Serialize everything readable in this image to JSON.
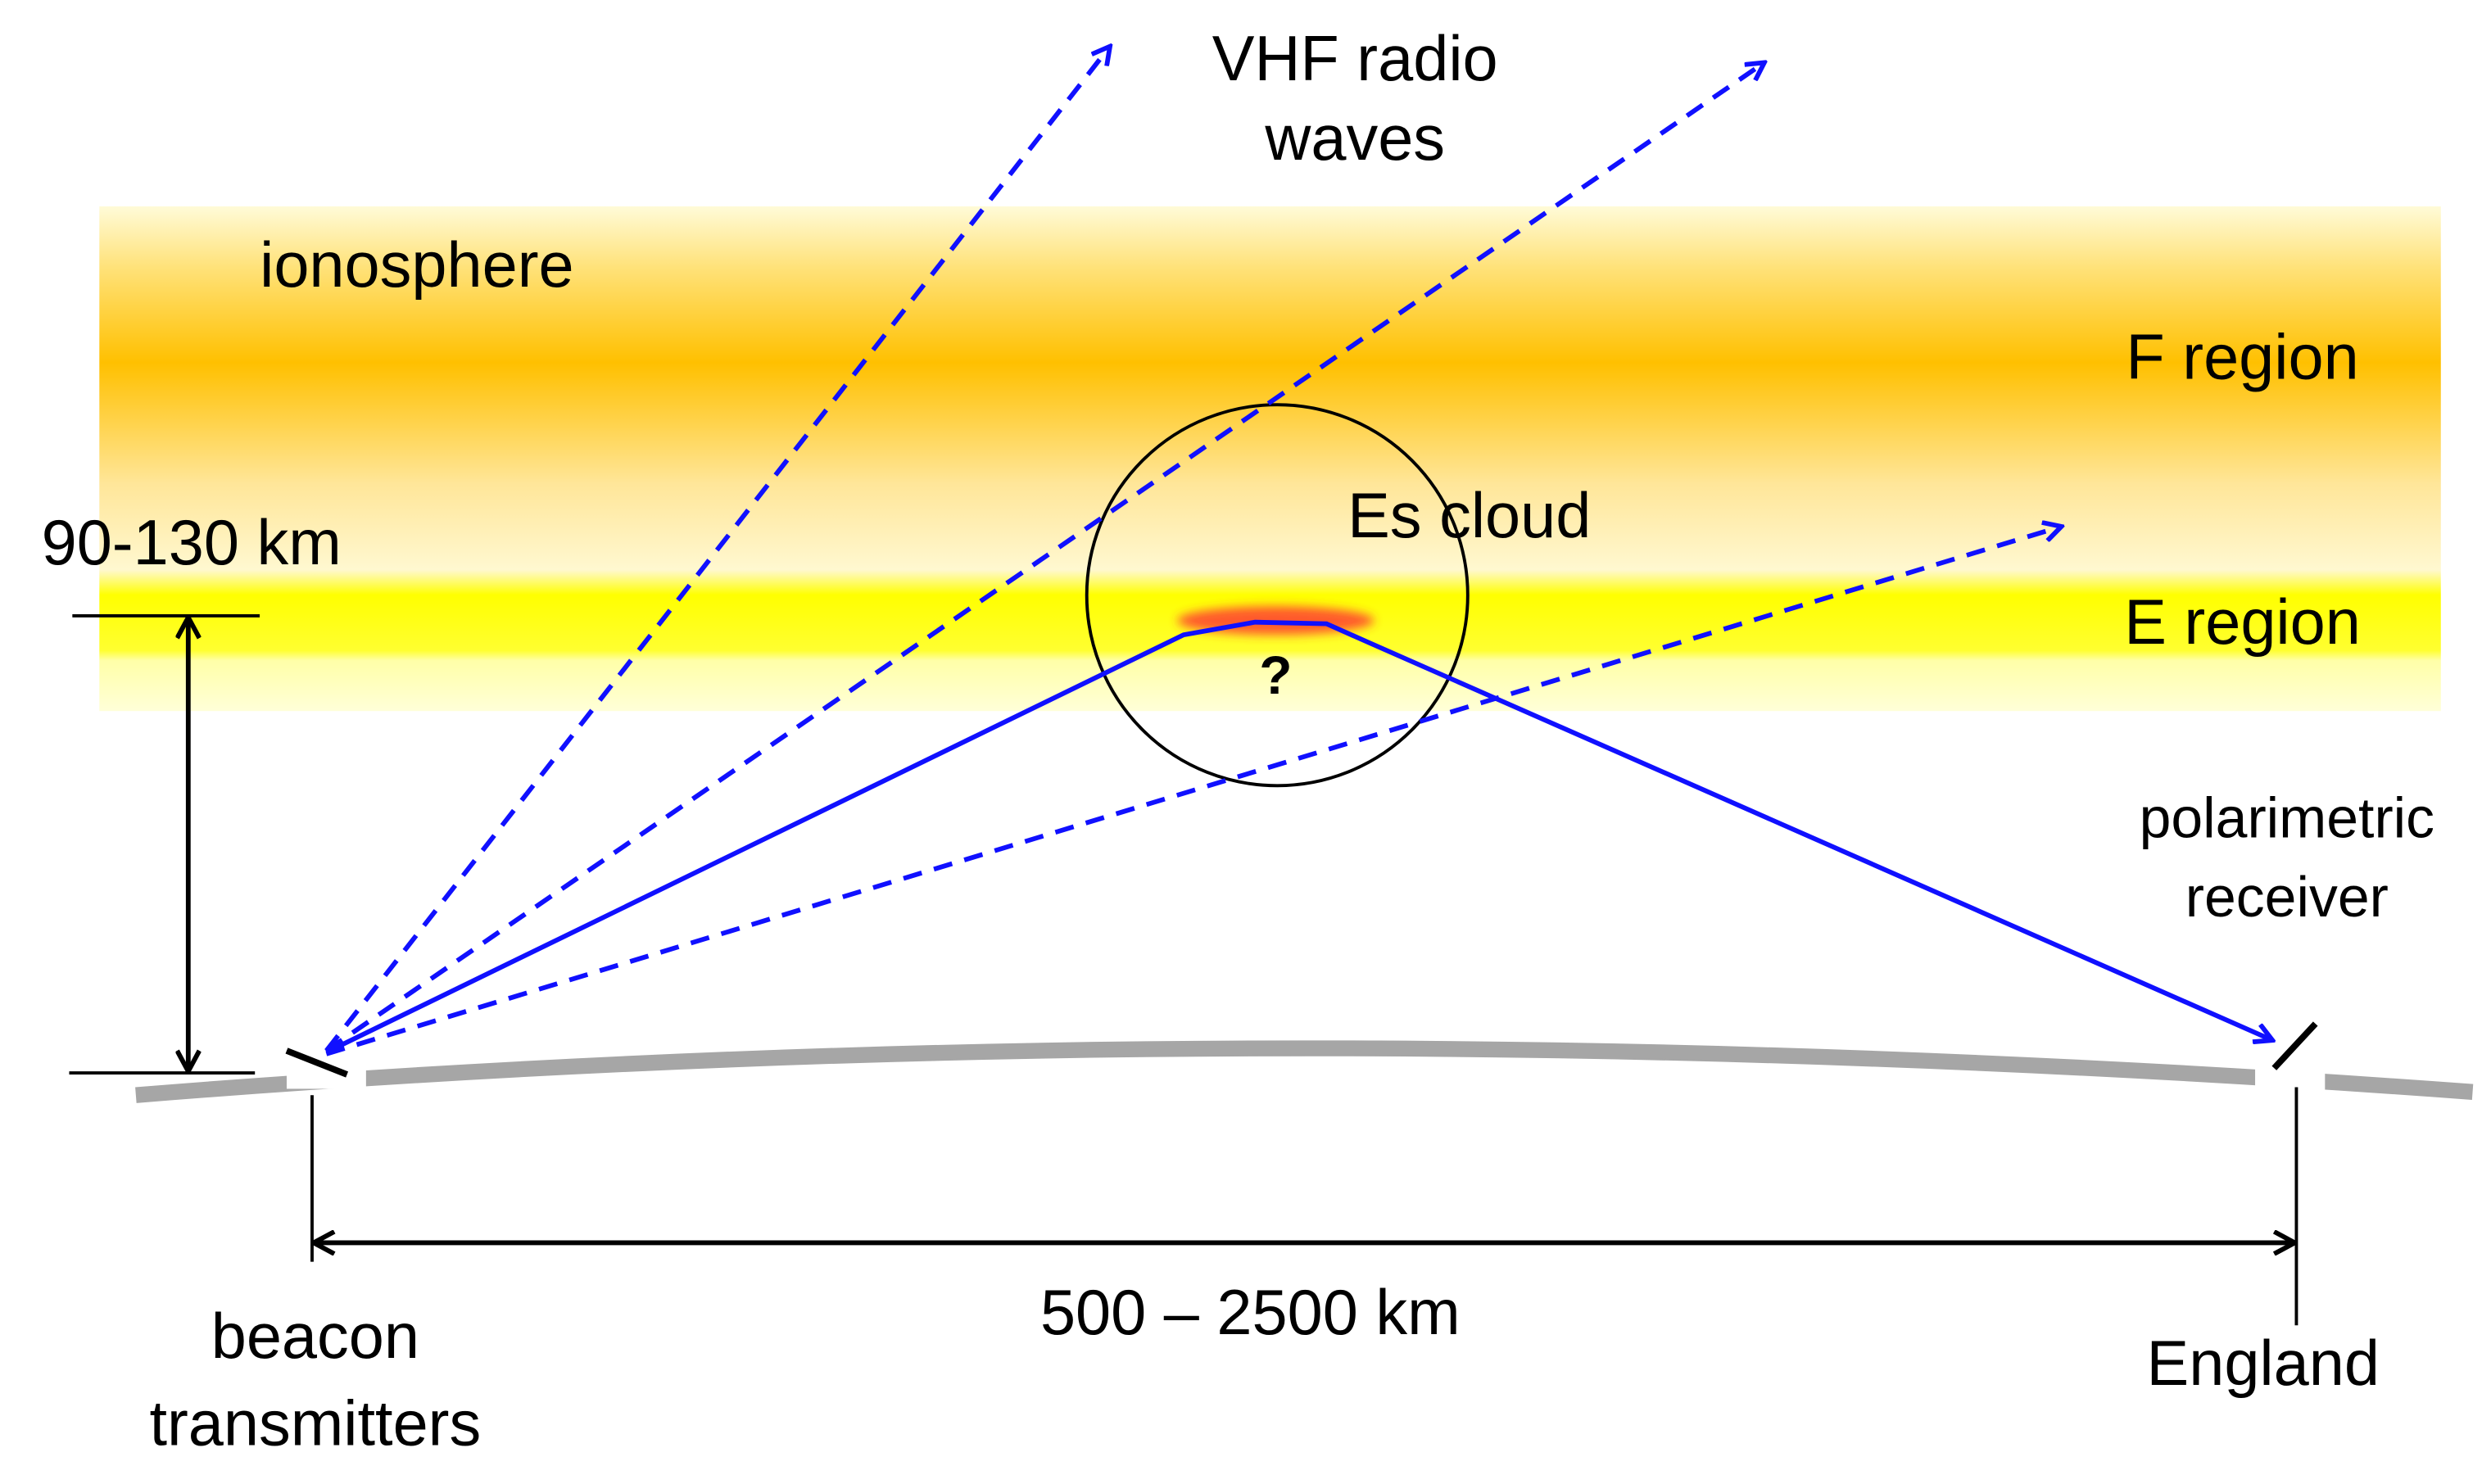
{
  "labels": {
    "vhf": [
      "VHF radio",
      "waves"
    ],
    "ionosphere": "ionosphere",
    "f_region": "F region",
    "e_region": "E region",
    "es_cloud": "Es cloud",
    "question": "?",
    "height": "90-130 km",
    "receiver": [
      "polarimetric",
      "receiver"
    ],
    "distance": "500 – 2500 km",
    "transmitter": [
      "beacon",
      "transmitters"
    ],
    "england": "England"
  }
}
